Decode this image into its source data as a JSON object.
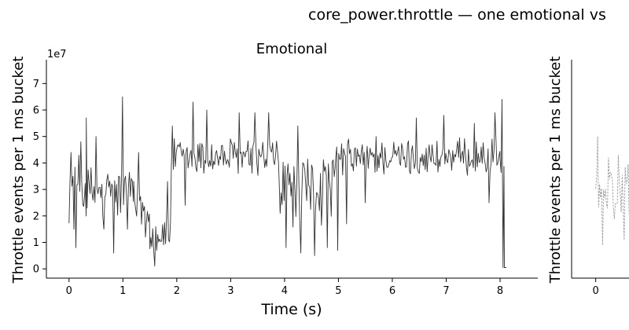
{
  "figure": {
    "suptitle": "core_power.throttle — one emotional vs"
  },
  "chart_data": [
    {
      "type": "line",
      "title": "Emotional",
      "xlabel": "Time (s)",
      "ylabel": "Throttle events per 1 ms bucket",
      "y_offset_label": "1e7",
      "xlim": [
        -0.42,
        8.7
      ],
      "ylim": [
        -0.35,
        7.9
      ],
      "y_units": "1e7 events",
      "x_ticks": [
        "0",
        "1",
        "2",
        "3",
        "4",
        "5",
        "6",
        "7",
        "8"
      ],
      "y_ticks": [
        "0",
        "1",
        "2",
        "3",
        "4",
        "5",
        "6",
        "7"
      ],
      "grid": false,
      "series": [
        {
          "color": "#333333",
          "style": "solid",
          "segments": [
            {
              "x_range": [
                0.0,
                0.3
              ],
              "mean": 3.1,
              "amp": 1.1,
              "spikes": [
                [
                  0.04,
                  4.4
                ],
                [
                  0.1,
                  1.5
                ],
                [
                  0.12,
                  0.8
                ],
                [
                  0.22,
                  4.8
                ],
                [
                  0.32,
                  5.7
                ]
              ]
            },
            {
              "x_range": [
                0.3,
                1.2
              ],
              "mean": 2.8,
              "amp": 1.0,
              "spikes": [
                [
                  0.5,
                  5.0
                ],
                [
                  0.65,
                  1.5
                ],
                [
                  0.82,
                  0.6
                ],
                [
                  1.0,
                  6.5
                ],
                [
                  1.08,
                  1.5
                ]
              ]
            },
            {
              "x_range": [
                1.2,
                1.5
              ],
              "mean": 2.3,
              "amp": 0.9,
              "spikes": [
                [
                  1.3,
                  4.4
                ],
                [
                  1.42,
                  1.2
                ]
              ]
            },
            {
              "x_range": [
                1.5,
                1.9
              ],
              "mean": 1.3,
              "amp": 0.6,
              "spikes": [
                [
                  1.6,
                  0.1
                ],
                [
                  1.82,
                  3.3
                ]
              ]
            },
            {
              "x_range": [
                1.9,
                3.9
              ],
              "mean": 4.2,
              "amp": 0.65,
              "spikes": [
                [
                  1.92,
                  5.4
                ],
                [
                  2.15,
                  2.4
                ],
                [
                  2.3,
                  6.3
                ],
                [
                  2.55,
                  6.0
                ],
                [
                  3.15,
                  5.9
                ],
                [
                  3.45,
                  5.9
                ],
                [
                  3.7,
                  5.9
                ]
              ]
            },
            {
              "x_range": [
                3.9,
                4.95
              ],
              "mean": 3.0,
              "amp": 1.2,
              "spikes": [
                [
                  4.02,
                  0.8
                ],
                [
                  4.3,
                  0.6
                ],
                [
                  4.55,
                  0.5
                ],
                [
                  4.8,
                  0.8
                ],
                [
                  4.25,
                  5.4
                ]
              ]
            },
            {
              "x_range": [
                4.95,
                8.0
              ],
              "mean": 4.2,
              "amp": 0.6,
              "spikes": [
                [
                  4.98,
                  0.7
                ],
                [
                  5.15,
                  1.7
                ],
                [
                  5.5,
                  2.5
                ],
                [
                  5.7,
                  5.0
                ],
                [
                  6.45,
                  5.7
                ],
                [
                  6.95,
                  5.8
                ],
                [
                  7.52,
                  5.5
                ],
                [
                  7.9,
                  5.9
                ],
                [
                  7.8,
                  2.5
                ]
              ]
            },
            {
              "x_range": [
                8.0,
                8.08
              ],
              "mean": 4.0,
              "amp": 0.3,
              "spikes": [
                [
                  8.04,
                  6.4
                ],
                [
                  8.06,
                  0.05
                ]
              ]
            },
            {
              "x_range": [
                8.08,
                8.12
              ],
              "mean": 0.05,
              "amp": 0.0,
              "spikes": []
            }
          ]
        }
      ]
    },
    {
      "type": "line",
      "title": "",
      "xlabel": "",
      "ylabel": "Throttle events per 1 ms bucket",
      "xlim": [
        -0.42,
        0.8
      ],
      "ylim": [
        -0.35,
        7.9
      ],
      "x_ticks": [
        "0"
      ],
      "grid": false,
      "series": [
        {
          "color": "#999999",
          "style": "dashed",
          "segments": [
            {
              "x_range": [
                0.0,
                0.6
              ],
              "mean": 2.8,
              "amp": 1.0,
              "spikes": [
                [
                  0.03,
                  5.0
                ],
                [
                  0.12,
                  0.9
                ],
                [
                  0.22,
                  4.2
                ],
                [
                  0.4,
                  4.3
                ],
                [
                  0.5,
                  1.1
                ]
              ]
            }
          ]
        }
      ]
    }
  ]
}
